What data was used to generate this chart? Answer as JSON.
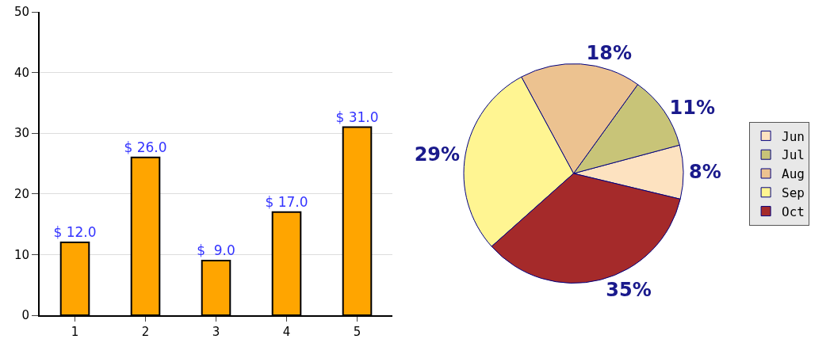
{
  "chart_data": [
    {
      "type": "bar",
      "categories": [
        "1",
        "2",
        "3",
        "4",
        "5"
      ],
      "values": [
        12,
        26,
        9,
        17,
        31
      ],
      "value_labels": [
        "$ 12.0",
        "$ 26.0",
        "$  9.0",
        "$ 17.0",
        "$ 31.0"
      ],
      "color": "#ffa500",
      "ylim": [
        0,
        50
      ],
      "yticks": [
        0,
        10,
        20,
        30,
        40,
        50
      ],
      "grid": "y"
    },
    {
      "type": "pie",
      "categories": [
        "Jun",
        "Jul",
        "Aug",
        "Sep",
        "Oct"
      ],
      "values": [
        8,
        11,
        18,
        29,
        35
      ],
      "value_labels": [
        "8%",
        "11%",
        "18%",
        "29%",
        "35%"
      ],
      "colors": [
        "#fde2c0",
        "#c8c478",
        "#ecc290",
        "#fff592",
        "#a52a2a"
      ],
      "legend": "right"
    }
  ]
}
